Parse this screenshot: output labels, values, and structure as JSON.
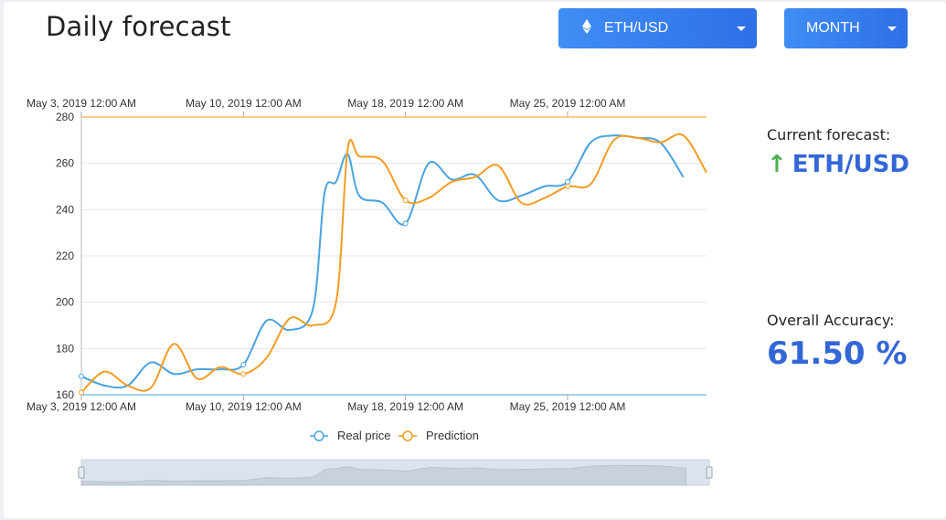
{
  "header": {
    "title": "Daily forecast",
    "pair_label": "ETH/USD",
    "period_label": "MONTH"
  },
  "side": {
    "forecast_label": "Current forecast:",
    "forecast_direction": "up",
    "forecast_pair": "ETH/USD",
    "accuracy_label": "Overall Accuracy:",
    "accuracy_value": "61.50 %"
  },
  "colors": {
    "accent": "#3366d6",
    "real": "#4aa3df",
    "prediction": "#f39c22",
    "up": "#4caf50"
  },
  "chart_data": {
    "type": "line",
    "xlabels": [
      "May 3, 2019 12:00 AM",
      "May 10, 2019 12:00 AM",
      "May 18, 2019 12:00 AM",
      "May 25, 2019 12:00 AM"
    ],
    "xticks": [
      0,
      7,
      14,
      21
    ],
    "yticks": [
      160,
      180,
      200,
      220,
      240,
      260,
      280
    ],
    "ylim": [
      160,
      280
    ],
    "xlim": [
      0,
      27
    ],
    "grid": true,
    "legend": "bottom",
    "series": [
      {
        "name": "Real price",
        "x": [
          0,
          1,
          2,
          3,
          4,
          5,
          6,
          7,
          8,
          9,
          10,
          10.5,
          11,
          11.5,
          12,
          13,
          14,
          15,
          16,
          17,
          18,
          19,
          20,
          21,
          22,
          23,
          24,
          25,
          26
        ],
        "values": [
          168,
          164,
          164,
          174,
          169,
          171,
          171,
          173,
          192,
          188,
          197,
          247,
          252,
          264,
          246,
          243,
          234,
          260,
          253,
          255,
          244,
          246,
          250,
          252,
          269,
          272,
          271,
          269,
          254
        ]
      },
      {
        "name": "Prediction",
        "x": [
          0,
          1,
          2,
          3,
          4,
          5,
          6,
          7,
          8,
          9,
          10,
          11,
          11.5,
          12,
          13,
          14,
          15,
          16,
          17,
          18,
          19,
          20,
          21,
          22,
          23,
          24,
          25,
          26,
          27
        ],
        "values": [
          161,
          170,
          164,
          163,
          182,
          167,
          172,
          169,
          176,
          193,
          190,
          200,
          266,
          263,
          261,
          244,
          245,
          252,
          254,
          259,
          243,
          245,
          250,
          251,
          270,
          271,
          269,
          272,
          256
        ]
      }
    ]
  }
}
